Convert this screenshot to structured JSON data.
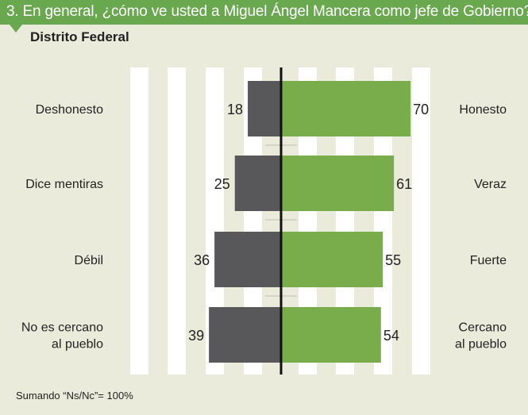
{
  "header": {
    "title": "3. En general, ¿cómo ve usted a Miguel Ángel Mancera como jefe de Gobierno?",
    "subtitle": "Distrito Federal"
  },
  "footnote": "Sumando “Ns/Nc”= 100%",
  "colors": {
    "header": "#6aa84f",
    "background": "#ebebdc",
    "negative_bar": "#58585a",
    "positive_bar": "#79ad4b",
    "stripe": "#ffffff",
    "axis": "#111111",
    "text": "#222222"
  },
  "chart_data": {
    "type": "bar",
    "orientation": "horizontal-diverging",
    "title": "3. En general, ¿cómo ve usted a Miguel Ángel Mancera como jefe de Gobierno?",
    "subtitle": "Distrito Federal",
    "xlim": [
      0,
      100
    ],
    "grid": true,
    "rows": [
      {
        "left_label": "Deshonesto",
        "left_value": 18,
        "right_label": "Honesto",
        "right_value": 70
      },
      {
        "left_label": "Dice mentiras",
        "left_value": 25,
        "right_label": "Veraz",
        "right_value": 61
      },
      {
        "left_label": "Débil",
        "left_value": 36,
        "right_label": "Fuerte",
        "right_value": 55
      },
      {
        "left_label": "No es cercano\nal pueblo",
        "left_value": 39,
        "right_label": "Cercano\nal pueblo",
        "right_value": 54
      }
    ]
  }
}
